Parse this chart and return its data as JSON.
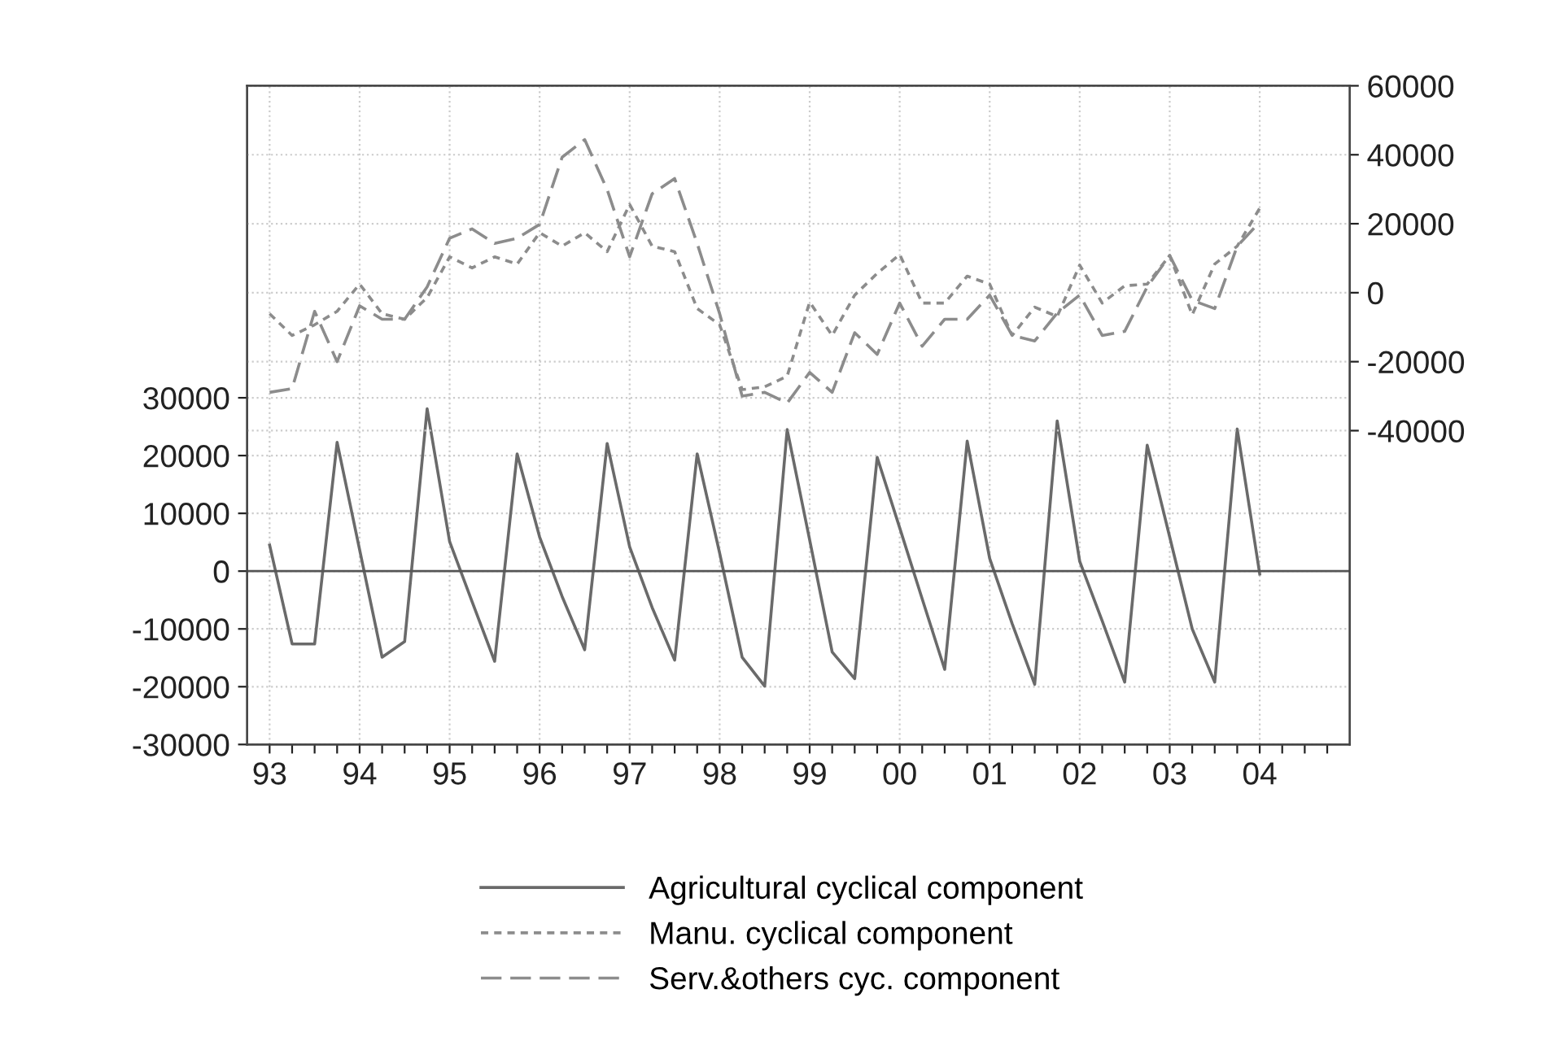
{
  "chart_data": {
    "type": "line",
    "x": [
      1993,
      1993.25,
      1993.5,
      1993.75,
      1994,
      1994.25,
      1994.5,
      1994.75,
      1995,
      1995.25,
      1995.5,
      1995.75,
      1996,
      1996.25,
      1996.5,
      1996.75,
      1997,
      1997.25,
      1997.5,
      1997.75,
      1998,
      1998.25,
      1998.5,
      1998.75,
      1999,
      1999.25,
      1999.5,
      1999.75,
      2000,
      2000.25,
      2000.5,
      2000.75,
      2001,
      2001.25,
      2001.5,
      2001.75,
      2002,
      2002.25,
      2002.5,
      2002.75,
      2003,
      2003.25,
      2003.5,
      2003.75,
      2004
    ],
    "series": [
      {
        "name": "Agricultural cyclical component",
        "color": "#6a6a6a",
        "line_style": "solid",
        "values": [
          4500,
          -12600,
          -12600,
          22300,
          3700,
          -14900,
          -12200,
          28100,
          5100,
          -5300,
          -15600,
          20300,
          5900,
          -4400,
          -13600,
          22100,
          4200,
          -6300,
          -15400,
          20300,
          3100,
          -14900,
          -19900,
          24500,
          5400,
          -14000,
          -18600,
          19700,
          7500,
          -4800,
          -17000,
          22500,
          2200,
          -9100,
          -19600,
          26000,
          1700,
          -8600,
          -19200,
          21800,
          5900,
          -10000,
          -19200,
          24600,
          -500
        ]
      },
      {
        "name": "Manu. cyclical component",
        "color": "#8c8c8c",
        "line_style": "dotted",
        "axis": "y2",
        "values": [
          -6100,
          -12400,
          -9300,
          -5400,
          2500,
          -6100,
          -7700,
          -1400,
          10400,
          7200,
          10400,
          8300,
          17400,
          13500,
          17400,
          11900,
          25600,
          13500,
          11900,
          -4600,
          -9300,
          -28100,
          -27300,
          -24200,
          -2700,
          -12400,
          -700,
          5600,
          11100,
          -3000,
          -3000,
          4800,
          2500,
          -12400,
          -4200,
          -6900,
          8000,
          -3000,
          2000,
          2500,
          10800,
          -6400,
          8300,
          13500,
          24500
        ]
      },
      {
        "name": "Serv.&others cyc. component",
        "color": "#8c8c8c",
        "line_style": "dashed",
        "axis": "y2",
        "values": [
          -28900,
          -27800,
          -5400,
          -20000,
          -3800,
          -7700,
          -7700,
          1700,
          15800,
          18500,
          14300,
          15800,
          19800,
          39300,
          44400,
          29900,
          10400,
          28700,
          33100,
          14300,
          -6100,
          -30000,
          -28900,
          -32000,
          -23100,
          -28900,
          -11600,
          -17900,
          -3000,
          -15500,
          -7700,
          -7700,
          -700,
          -12400,
          -14000,
          -5900,
          -700,
          -12400,
          -11200,
          1700,
          10800,
          -2200,
          -4600,
          13500,
          20500
        ]
      }
    ],
    "xlim": [
      1992.75,
      2005
    ],
    "xticks": [
      {
        "value": 1993,
        "label": "93"
      },
      {
        "value": 1993.25,
        "label": null
      },
      {
        "value": 1993.5,
        "label": null
      },
      {
        "value": 1993.75,
        "label": null
      },
      {
        "value": 1994,
        "label": "94"
      },
      {
        "value": 1994.25,
        "label": null
      },
      {
        "value": 1994.5,
        "label": null
      },
      {
        "value": 1994.75,
        "label": null
      },
      {
        "value": 1995,
        "label": "95"
      },
      {
        "value": 1995.25,
        "label": null
      },
      {
        "value": 1995.5,
        "label": null
      },
      {
        "value": 1995.75,
        "label": null
      },
      {
        "value": 1996,
        "label": "96"
      },
      {
        "value": 1996.25,
        "label": null
      },
      {
        "value": 1996.5,
        "label": null
      },
      {
        "value": 1996.75,
        "label": null
      },
      {
        "value": 1997,
        "label": "97"
      },
      {
        "value": 1997.25,
        "label": null
      },
      {
        "value": 1997.5,
        "label": null
      },
      {
        "value": 1997.75,
        "label": null
      },
      {
        "value": 1998,
        "label": "98"
      },
      {
        "value": 1998.25,
        "label": null
      },
      {
        "value": 1998.5,
        "label": null
      },
      {
        "value": 1998.75,
        "label": null
      },
      {
        "value": 1999,
        "label": "99"
      },
      {
        "value": 1999.25,
        "label": null
      },
      {
        "value": 1999.5,
        "label": null
      },
      {
        "value": 1999.75,
        "label": null
      },
      {
        "value": 2000,
        "label": "00"
      },
      {
        "value": 2000.25,
        "label": null
      },
      {
        "value": 2000.5,
        "label": null
      },
      {
        "value": 2000.75,
        "label": null
      },
      {
        "value": 2001,
        "label": "01"
      },
      {
        "value": 2001.25,
        "label": null
      },
      {
        "value": 2001.5,
        "label": null
      },
      {
        "value": 2001.75,
        "label": null
      },
      {
        "value": 2002,
        "label": "02"
      },
      {
        "value": 2002.25,
        "label": null
      },
      {
        "value": 2002.5,
        "label": null
      },
      {
        "value": 2002.75,
        "label": null
      },
      {
        "value": 2003,
        "label": "03"
      },
      {
        "value": 2003.25,
        "label": null
      },
      {
        "value": 2003.5,
        "label": null
      },
      {
        "value": 2003.75,
        "label": null
      },
      {
        "value": 2004,
        "label": "04"
      },
      {
        "value": 2004.25,
        "label": null
      },
      {
        "value": 2004.5,
        "label": null
      },
      {
        "value": 2004.75,
        "label": null
      }
    ],
    "ylim": [
      -30000,
      84000
    ],
    "yticks": [
      -30000,
      -20000,
      -10000,
      0,
      10000,
      20000,
      30000
    ],
    "y2lim": [
      -131000,
      60000
    ],
    "y2ticks": [
      -40000,
      -20000,
      0,
      20000,
      40000,
      60000
    ],
    "ref_lines": [
      {
        "axis": "y",
        "value": 0,
        "color": "#555555",
        "line_style": "solid"
      }
    ],
    "grid": true,
    "legend": "bottom",
    "marker": "none"
  }
}
